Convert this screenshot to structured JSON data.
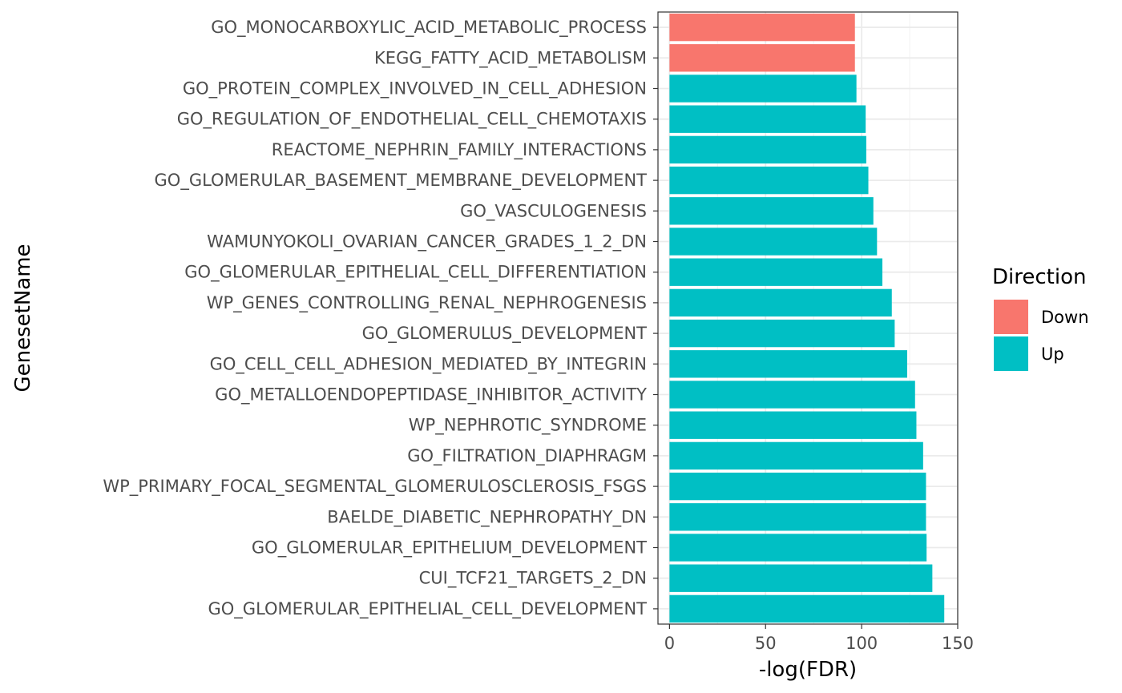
{
  "chart_data": {
    "type": "bar",
    "orientation": "horizontal",
    "title": "",
    "xlabel": "-log(FDR)",
    "ylabel": "GenesetName",
    "xlim": [
      -6,
      150
    ],
    "x_ticks": [
      0,
      50,
      100,
      150
    ],
    "grid": true,
    "legend": {
      "title": "Direction",
      "position": "right",
      "entries": [
        {
          "name": "Down",
          "color": "#F8766D"
        },
        {
          "name": "Up",
          "color": "#00BFC4"
        }
      ]
    },
    "categories": [
      "GO_MONOCARBOXYLIC_ACID_METABOLIC_PROCESS",
      "KEGG_FATTY_ACID_METABOLISM",
      "GO_PROTEIN_COMPLEX_INVOLVED_IN_CELL_ADHESION",
      "GO_REGULATION_OF_ENDOTHELIAL_CELL_CHEMOTAXIS",
      "REACTOME_NEPHRIN_FAMILY_INTERACTIONS",
      "GO_GLOMERULAR_BASEMENT_MEMBRANE_DEVELOPMENT",
      "GO_VASCULOGENESIS",
      "WAMUNYOKOLI_OVARIAN_CANCER_GRADES_1_2_DN",
      "GO_GLOMERULAR_EPITHELIAL_CELL_DIFFERENTIATION",
      "WP_GENES_CONTROLLING_RENAL_NEPHROGENESIS",
      "GO_GLOMERULUS_DEVELOPMENT",
      "GO_CELL_CELL_ADHESION_MEDIATED_BY_INTEGRIN",
      "GO_METALLOENDOPEPTIDASE_INHIBITOR_ACTIVITY",
      "WP_NEPHROTIC_SYNDROME",
      "GO_FILTRATION_DIAPHRAGM",
      "WP_PRIMARY_FOCAL_SEGMENTAL_GLOMERULOSCLEROSIS_FSGS",
      "BAELDE_DIABETIC_NEPHROPATHY_DN",
      "GO_GLOMERULAR_EPITHELIUM_DEVELOPMENT",
      "CUI_TCF21_TARGETS_2_DN",
      "GO_GLOMERULAR_EPITHELIAL_CELL_DEVELOPMENT"
    ],
    "values": [
      96.5,
      96.5,
      97.3,
      102.1,
      102.4,
      103.5,
      106.1,
      108.0,
      110.8,
      115.7,
      117.2,
      123.7,
      127.8,
      128.5,
      132.0,
      133.5,
      133.5,
      133.8,
      136.8,
      143.0
    ],
    "direction": [
      "Down",
      "Down",
      "Up",
      "Up",
      "Up",
      "Up",
      "Up",
      "Up",
      "Up",
      "Up",
      "Up",
      "Up",
      "Up",
      "Up",
      "Up",
      "Up",
      "Up",
      "Up",
      "Up",
      "Up"
    ]
  }
}
